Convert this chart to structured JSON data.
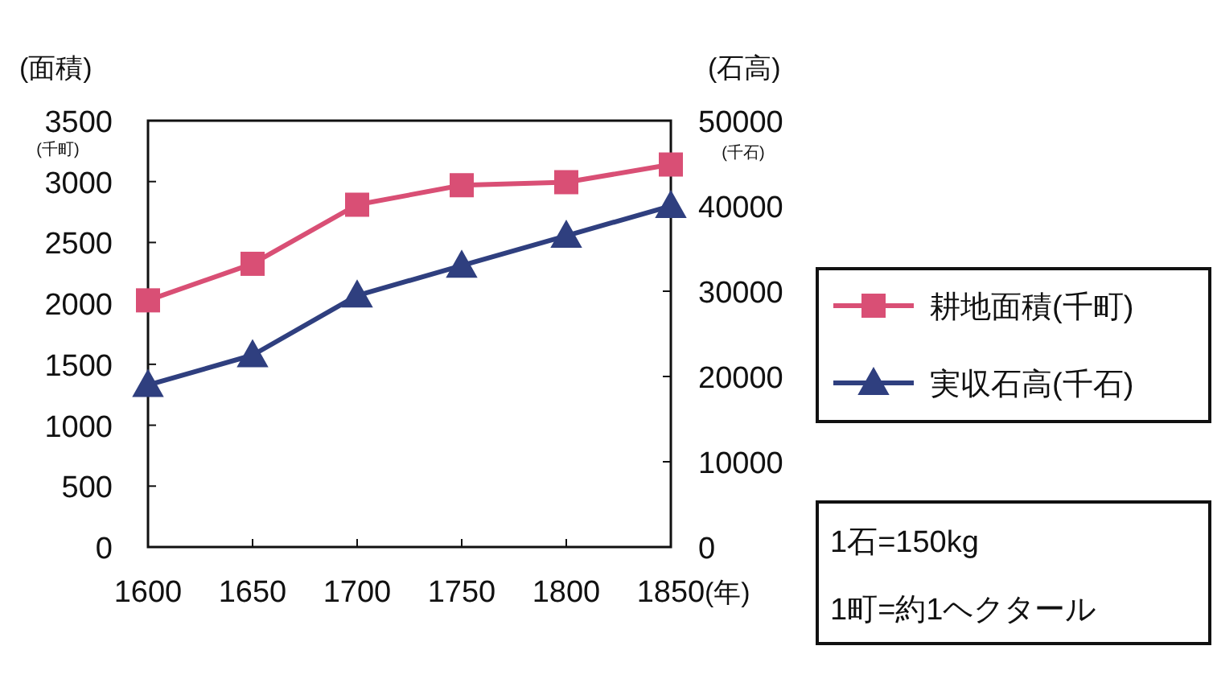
{
  "chart_data": {
    "type": "line",
    "ylabel": "(面積)",
    "y2label": "(石高)",
    "xlabel": "(年)",
    "x": [
      1600,
      1650,
      1700,
      1750,
      1800,
      1850
    ],
    "xlim": [
      1600,
      1850
    ],
    "xticks": [
      1600,
      1650,
      1700,
      1750,
      1800,
      1850
    ],
    "ylim": [
      0,
      3500
    ],
    "yticks": [
      0,
      500,
      1000,
      1500,
      2000,
      2500,
      3000,
      3500
    ],
    "y2lim": [
      0,
      50000
    ],
    "y2ticks": [
      0,
      10000,
      20000,
      30000,
      40000,
      50000
    ],
    "series": [
      {
        "name": "耕地面積(千町)",
        "color": "#d94f75",
        "marker": "square",
        "values": [
          2025,
          2325,
          2810,
          2970,
          2995,
          3140
        ]
      },
      {
        "name": "実収石高(千石)",
        "color": "#2f3f7f",
        "marker": "triangle",
        "axis": "y2",
        "values": [
          19000,
          22500,
          29500,
          33000,
          36500,
          40000
        ]
      }
    ],
    "legend": "right",
    "grid": false,
    "annotations": [
      "(千町)",
      "(千石)",
      "1石=150kg",
      "1町=約1ヘクタール"
    ]
  }
}
